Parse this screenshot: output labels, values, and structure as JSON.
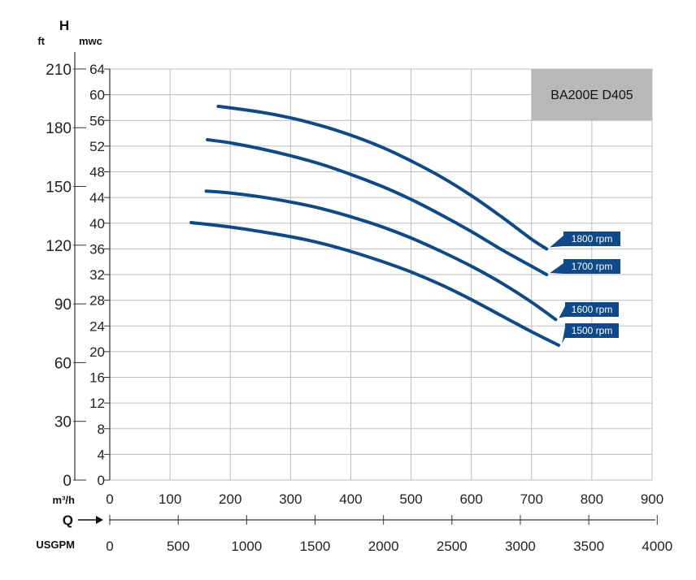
{
  "colors": {
    "curve": "#0e4a8a",
    "label_bg": "#0e4a8a",
    "model_box": "#b8b8b8",
    "grid": "#bdbdbd",
    "axis": "#333333"
  },
  "chart_data": {
    "type": "line",
    "model_label": "BA200E D405",
    "y_axis_letter": "H",
    "y_units_left": "ft",
    "y_units_right": "mwc",
    "x_axis_letter": "Q",
    "x_units_top": "m³/h",
    "x_units_bottom": "USGPM",
    "ylim": [
      0,
      64
    ],
    "xlim": [
      0,
      900
    ],
    "y_ticks_mwc": [
      "0",
      "4",
      "8",
      "12",
      "16",
      "20",
      "24",
      "28",
      "32",
      "36",
      "40",
      "44",
      "48",
      "52",
      "56",
      "60",
      "64"
    ],
    "y_ticks_ft": [
      "0",
      "30",
      "60",
      "90",
      "120",
      "150",
      "180",
      "210"
    ],
    "x_ticks_m3h": [
      "0",
      "100",
      "200",
      "300",
      "400",
      "500",
      "600",
      "700",
      "800",
      "900"
    ],
    "x_ticks_usgpm": [
      "0",
      "500",
      "1000",
      "1500",
      "2000",
      "2500",
      "3000",
      "3500",
      "4000"
    ],
    "series": [
      {
        "name": "1800 rpm",
        "x": [
          180,
          250,
          300,
          350,
          400,
          450,
          500,
          550,
          600,
          650,
          700,
          725
        ],
        "y": [
          58.2,
          57.3,
          56.4,
          55.2,
          53.7,
          51.9,
          49.7,
          47.2,
          44.3,
          41.0,
          37.5,
          36.0
        ]
      },
      {
        "name": "1700 rpm",
        "x": [
          162,
          200,
          250,
          300,
          350,
          400,
          450,
          500,
          550,
          600,
          650,
          700,
          725
        ],
        "y": [
          53.0,
          52.5,
          51.6,
          50.5,
          49.2,
          47.6,
          45.8,
          43.7,
          41.3,
          38.7,
          35.9,
          33.3,
          32.0
        ]
      },
      {
        "name": "1600 rpm",
        "x": [
          160,
          200,
          250,
          300,
          350,
          400,
          450,
          500,
          550,
          600,
          650,
          700,
          740
        ],
        "y": [
          45.0,
          44.7,
          44.1,
          43.3,
          42.3,
          41.0,
          39.5,
          37.7,
          35.6,
          33.3,
          30.7,
          27.7,
          25.0
        ]
      },
      {
        "name": "1500 rpm",
        "x": [
          135,
          200,
          250,
          300,
          350,
          400,
          450,
          500,
          550,
          600,
          650,
          700,
          745
        ],
        "y": [
          40.1,
          39.4,
          38.7,
          37.9,
          36.9,
          35.6,
          34.1,
          32.4,
          30.4,
          28.1,
          25.6,
          23.1,
          21.0
        ]
      }
    ]
  }
}
